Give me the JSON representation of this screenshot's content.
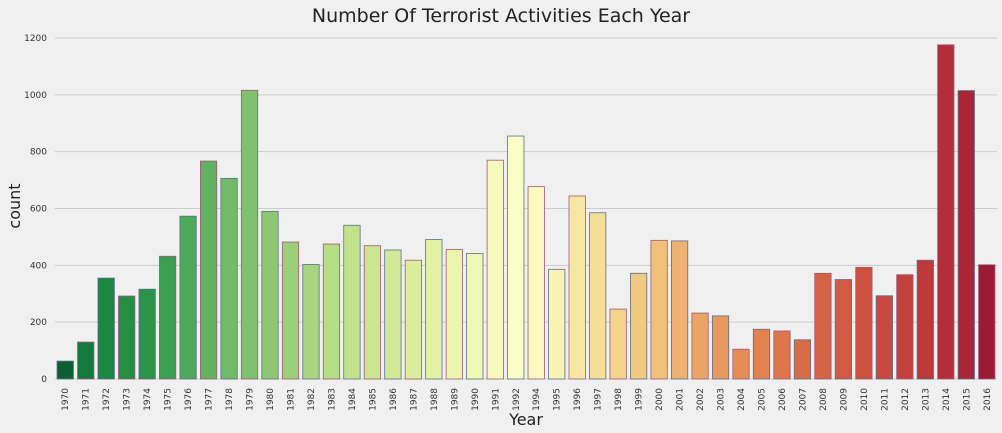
{
  "chart_data": {
    "type": "bar",
    "title": "Number Of Terrorist Activities Each Year",
    "xlabel": "Year",
    "ylabel": "count",
    "ylim": [
      0,
      1200
    ],
    "yticks": [
      0,
      200,
      400,
      600,
      800,
      1000,
      1200
    ],
    "grid": "horizontal",
    "palette": "RdYlGn_r (green to yellow to red)",
    "categories": [
      "1970",
      "1971",
      "1972",
      "1973",
      "1974",
      "1975",
      "1976",
      "1977",
      "1978",
      "1979",
      "1980",
      "1981",
      "1982",
      "1983",
      "1984",
      "1985",
      "1986",
      "1987",
      "1988",
      "1989",
      "1990",
      "1991",
      "1992",
      "1994",
      "1995",
      "1996",
      "1997",
      "1998",
      "1999",
      "2000",
      "2001",
      "2002",
      "2003",
      "2004",
      "2005",
      "2006",
      "2007",
      "2008",
      "2009",
      "2010",
      "2011",
      "2012",
      "2013",
      "2014",
      "2015",
      "2016"
    ],
    "values": [
      63,
      130,
      355,
      292,
      316,
      432,
      573,
      767,
      706,
      1016,
      590,
      482,
      403,
      475,
      541,
      469,
      454,
      418,
      491,
      456,
      442,
      770,
      855,
      677,
      386,
      644,
      585,
      246,
      372,
      488,
      486,
      232,
      222,
      105,
      175,
      169,
      138,
      372,
      350,
      393,
      293,
      367,
      418,
      1176,
      1015,
      402
    ],
    "colors": [
      "#0b5f35",
      "#137a3c",
      "#1b8741",
      "#248e45",
      "#2c944a",
      "#3a9f51",
      "#4ea859",
      "#60b160",
      "#70ba68",
      "#7fc16f",
      "#8dc772",
      "#9bd078",
      "#a8d57d",
      "#b5dd83",
      "#c1e289",
      "#cae68f",
      "#d2e996",
      "#dcee9e",
      "#e4f2a6",
      "#ebf5ad",
      "#f0f7b5",
      "#f5f9bd",
      "#fbfdc8",
      "#fbf8c0",
      "#faf3b5",
      "#f8e7a2",
      "#f5df97",
      "#f4d48a",
      "#f2c981",
      "#f0bf79",
      "#edb170",
      "#eaa566",
      "#e79a5e",
      "#e58d57",
      "#e28251",
      "#dd774b",
      "#d86c46",
      "#d46244",
      "#d05a42",
      "#cc5141",
      "#c8493f",
      "#c3413d",
      "#be393b",
      "#b32e39",
      "#a82637",
      "#9c1a36"
    ]
  }
}
